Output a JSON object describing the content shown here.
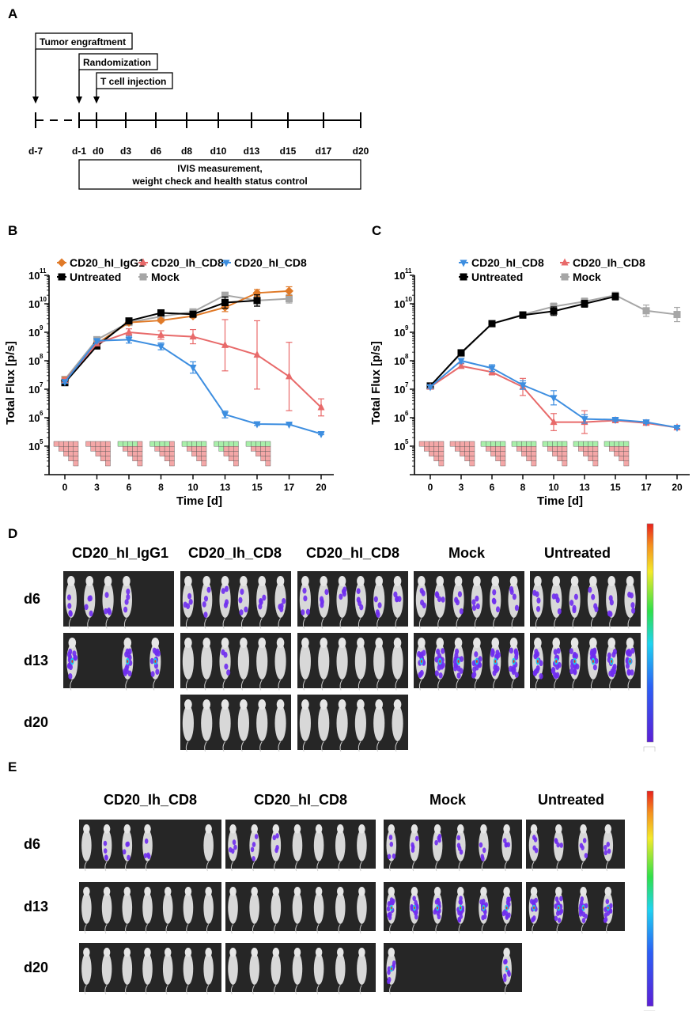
{
  "panels": {
    "a": "A",
    "b": "B",
    "c": "C",
    "d": "D",
    "e": "E"
  },
  "timeline": {
    "events": {
      "tumor": "Tumor engraftment",
      "randomization": "Randomization",
      "tcell": "T cell injection"
    },
    "days": [
      "d-7",
      "d-1",
      "d0",
      "d3",
      "d6",
      "d8",
      "d10",
      "d13",
      "d15",
      "d17",
      "d20"
    ],
    "ivis_line1": "IVIS measurement,",
    "ivis_line2": "weight check and health status control"
  },
  "chart_data": [
    {
      "id": "B",
      "type": "line",
      "yscale": "log",
      "ylim_exp": [
        4,
        11
      ],
      "ylabel": "Total Flux [p/s]",
      "xlabel": "Time [d]",
      "x": [
        0,
        3,
        6,
        8,
        10,
        13,
        15,
        17,
        20
      ],
      "xticks": [
        "0",
        "3",
        "6",
        "8",
        "10",
        "13",
        "15",
        "17",
        "20"
      ],
      "yticks": [
        "10",
        "10",
        "10",
        "10",
        "10",
        "10",
        "10"
      ],
      "yticks_exp": [
        "5",
        "6",
        "7",
        "8",
        "9",
        "10",
        "11"
      ],
      "legend": [
        "CD20_hI_IgG1",
        "CD20_Ih_CD8",
        "CD20_hI_CD8",
        "Untreated",
        "Mock"
      ],
      "series": [
        {
          "name": "Mock",
          "color": "#a6a6a6",
          "marker": "square",
          "x": [
            0,
            3,
            6,
            8,
            10,
            13,
            15,
            17
          ],
          "values": [
            22000000.0,
            550000000.0,
            2200000000.0,
            3600000000.0,
            5200000000.0,
            20000000000.0,
            13000000000.0,
            15000000000.0
          ],
          "err": [
            0.1,
            0.08,
            0.05,
            0.05,
            0.06,
            0.1,
            0.18,
            0.15
          ]
        },
        {
          "name": "CD20_hI_IgG1",
          "color": "#e07a28",
          "marker": "diamond",
          "x": [
            0,
            3,
            6,
            8,
            10,
            13,
            15,
            17
          ],
          "values": [
            20000000.0,
            400000000.0,
            2200000000.0,
            2600000000.0,
            3700000000.0,
            7500000000.0,
            24000000000.0,
            28000000000.0
          ],
          "err": [
            0.12,
            0.06,
            0.05,
            0.05,
            0.06,
            0.15,
            0.12,
            0.15
          ]
        },
        {
          "name": "Untreated",
          "color": "#000000",
          "marker": "square",
          "x": [
            0,
            3,
            6,
            8,
            10,
            13,
            15
          ],
          "values": [
            17000000.0,
            330000000.0,
            2500000000.0,
            4800000000.0,
            4300000000.0,
            11000000000.0,
            13000000000.0
          ],
          "err": [
            0.08,
            0.05,
            0.05,
            0.05,
            0.08,
            0.2,
            0.2
          ]
        },
        {
          "name": "CD20_Ih_CD8",
          "color": "#e86a6a",
          "marker": "triangle-up",
          "x": [
            0,
            3,
            6,
            8,
            10,
            13,
            15,
            17,
            20
          ],
          "values": [
            20000000.0,
            400000000.0,
            1000000000.0,
            800000000.0,
            700000000.0,
            350000000.0,
            160000000.0,
            28000000.0,
            2300000.0
          ],
          "err": [
            0.08,
            0.05,
            0.12,
            0.15,
            0.25,
            0.9,
            1.2,
            1.2,
            0.3
          ]
        },
        {
          "name": "CD20_hI_CD8",
          "color": "#3d8ee0",
          "marker": "triangle-down",
          "x": [
            0,
            3,
            6,
            8,
            10,
            13,
            15,
            17,
            20
          ],
          "values": [
            18000000.0,
            500000000.0,
            550000000.0,
            320000000.0,
            58000000.0,
            1300000.0,
            600000.0,
            580000.0,
            270000.0
          ],
          "err": [
            0.05,
            0.06,
            0.12,
            0.12,
            0.2,
            0.12,
            0.05,
            0.02,
            0.03
          ]
        }
      ],
      "grids": [
        {
          "x": 0,
          "green": 0
        },
        {
          "x": 3,
          "green": 0
        },
        {
          "x": 6,
          "green": 4
        },
        {
          "x": 8,
          "green": 4
        },
        {
          "x": 10,
          "green": 5
        },
        {
          "x": 13,
          "green": 6
        },
        {
          "x": 15,
          "green": 5
        }
      ]
    },
    {
      "id": "C",
      "type": "line",
      "yscale": "log",
      "ylim_exp": [
        4,
        11
      ],
      "ylabel": "Total Flux [p/s]",
      "xlabel": "Time [d]",
      "x": [
        0,
        3,
        6,
        8,
        10,
        13,
        15,
        17,
        20
      ],
      "xticks": [
        "0",
        "3",
        "6",
        "8",
        "10",
        "13",
        "15",
        "17",
        "20"
      ],
      "yticks": [
        "10",
        "10",
        "10",
        "10",
        "10",
        "10",
        "10"
      ],
      "yticks_exp": [
        "5",
        "6",
        "7",
        "8",
        "9",
        "10",
        "11"
      ],
      "legend": [
        "CD20_hI_CD8",
        "CD20_Ih_CD8",
        "Untreated",
        "Mock"
      ],
      "series": [
        {
          "name": "Mock",
          "color": "#a6a6a6",
          "marker": "square",
          "x": [
            0,
            3,
            6,
            8,
            10,
            13,
            15,
            17,
            20
          ],
          "values": [
            13000000.0,
            180000000.0,
            2000000000.0,
            4200000000.0,
            8000000000.0,
            12000000000.0,
            20000000000.0,
            5700000000.0,
            4200000000.0
          ],
          "err": [
            0.05,
            0.08,
            0.05,
            0.06,
            0.12,
            0.12,
            0.1,
            0.2,
            0.25
          ]
        },
        {
          "name": "Untreated",
          "color": "#000000",
          "marker": "square",
          "x": [
            0,
            3,
            6,
            8,
            10,
            13,
            15
          ],
          "values": [
            13000000.0,
            190000000.0,
            2000000000.0,
            4000000000.0,
            5500000000.0,
            10000000000.0,
            18000000000.0
          ],
          "err": [
            0.05,
            0.1,
            0.05,
            0.1,
            0.15,
            0.12,
            0.12
          ]
        },
        {
          "name": "CD20_Ih_CD8",
          "color": "#e86a6a",
          "marker": "triangle-up",
          "x": [
            0,
            3,
            6,
            8,
            10,
            13,
            15,
            17,
            20
          ],
          "values": [
            12000000.0,
            65000000.0,
            40000000.0,
            12000000.0,
            700000.0,
            700000.0,
            800000.0,
            650000.0,
            450000.0
          ],
          "err": [
            0.05,
            0.08,
            0.1,
            0.3,
            0.3,
            0.4,
            0.05,
            0.05,
            0.03
          ]
        },
        {
          "name": "CD20_hI_CD8",
          "color": "#3d8ee0",
          "marker": "triangle-down",
          "x": [
            0,
            3,
            6,
            8,
            10,
            13,
            15,
            17,
            20
          ],
          "values": [
            12000000.0,
            100000000.0,
            55000000.0,
            14000000.0,
            5000000.0,
            900000.0,
            850000.0,
            700000.0,
            450000.0
          ],
          "err": [
            0.05,
            0.08,
            0.12,
            0.15,
            0.25,
            0.15,
            0.05,
            0.05,
            0.03
          ]
        }
      ],
      "grids": [
        {
          "x": 0,
          "green": 0
        },
        {
          "x": 3,
          "green": 0
        },
        {
          "x": 6,
          "green": 5
        },
        {
          "x": 8,
          "green": 5
        },
        {
          "x": 10,
          "green": 5
        },
        {
          "x": 13,
          "green": 5
        },
        {
          "x": 15,
          "green": 5
        }
      ]
    }
  ],
  "panel_d": {
    "groups": [
      "CD20_hI_IgG1",
      "CD20_Ih_CD8",
      "CD20_hI_CD8",
      "Mock",
      "Untreated"
    ],
    "rows": [
      "d6",
      "d13",
      "d20"
    ]
  },
  "panel_e": {
    "groups": [
      "CD20_Ih_CD8",
      "CD20_hI_CD8",
      "Mock",
      "Untreated"
    ],
    "rows": [
      "d6",
      "d13",
      "d20"
    ]
  },
  "colors": {
    "grid_red": "#f4a7a7",
    "grid_green": "#a9efaa",
    "image_bg": "#262626",
    "mouse": "#d8d8d8",
    "signal": "#6f2cf0"
  }
}
